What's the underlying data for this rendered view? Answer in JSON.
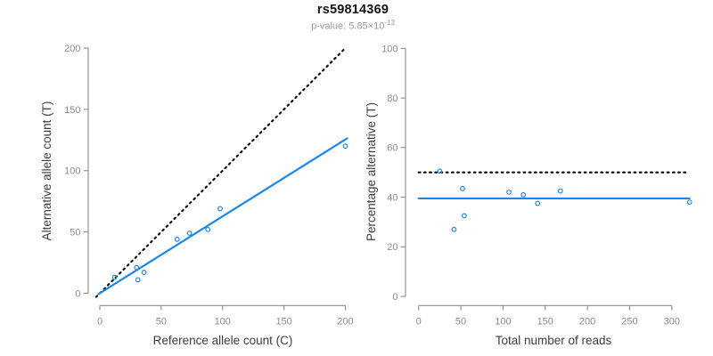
{
  "header": {
    "title": "rs59814369",
    "p_value_base": "p-value: 5.85×10",
    "p_value_exponent": "-13"
  },
  "colors": {
    "accent_blue": "#1e87e5",
    "reference_line_black": "#000000",
    "axis_gray": "#8b8b8b"
  },
  "chart_data": [
    {
      "type": "scatter",
      "xlabel": "Reference allele count (C)",
      "ylabel": "Alternative allele count (T)",
      "xlim": [
        0,
        200
      ],
      "ylim": [
        0,
        200
      ],
      "xticks": [
        0,
        50,
        100,
        150,
        200
      ],
      "yticks": [
        0,
        50,
        100,
        150,
        200
      ],
      "grid": false,
      "legend": null,
      "point_color": "#1e87e5",
      "points": [
        [
          12,
          13
        ],
        [
          30,
          21
        ],
        [
          31,
          11
        ],
        [
          36,
          17
        ],
        [
          63,
          44
        ],
        [
          73,
          49
        ],
        [
          88,
          52
        ],
        [
          98,
          69
        ],
        [
          200,
          120
        ]
      ],
      "lines": [
        {
          "name": "identity-line",
          "slope": 1,
          "intercept": 0,
          "style": "dotted",
          "color": "#000000"
        },
        {
          "name": "fit-line",
          "slope": 0.627,
          "intercept": 0,
          "style": "solid",
          "color": "#1e87e5"
        }
      ]
    },
    {
      "type": "scatter",
      "xlabel": "Total number of reads",
      "ylabel": "Percentage alternative (T)",
      "xlim": [
        0,
        321
      ],
      "ylim": [
        0,
        100
      ],
      "xticks": [
        0,
        50,
        100,
        150,
        200,
        250,
        300
      ],
      "yticks": [
        0,
        20,
        40,
        60,
        80,
        100
      ],
      "grid": false,
      "legend": null,
      "point_color": "#1e87e5",
      "points": [
        [
          25,
          50.5
        ],
        [
          42,
          27
        ],
        [
          52,
          43.5
        ],
        [
          54,
          32.5
        ],
        [
          107,
          42
        ],
        [
          124,
          41
        ],
        [
          141,
          37.5
        ],
        [
          168,
          42.5
        ],
        [
          321,
          38
        ]
      ],
      "lines": [
        {
          "name": "reference-50-percent-line",
          "slope": 0,
          "intercept": 50,
          "style": "dotted",
          "color": "#000000"
        },
        {
          "name": "fit-line",
          "slope": 0,
          "intercept": 39.5,
          "style": "solid",
          "color": "#1e87e5"
        }
      ]
    }
  ]
}
